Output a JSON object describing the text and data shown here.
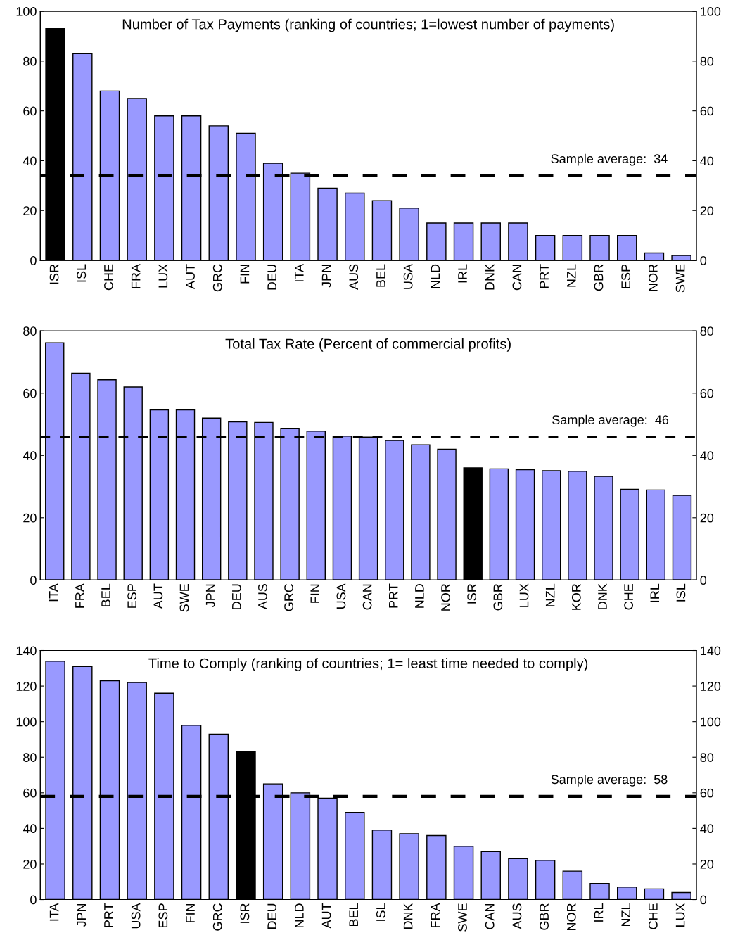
{
  "chart_data": [
    {
      "type": "bar",
      "title": "Number of Tax Payments (ranking of countries; 1=lowest number of payments)",
      "categories": [
        "ISR",
        "ISL",
        "CHE",
        "FRA",
        "LUX",
        "AUT",
        "GRC",
        "FIN",
        "DEU",
        "ITA",
        "JPN",
        "AUS",
        "BEL",
        "USA",
        "NLD",
        "IRL",
        "DNK",
        "CAN",
        "PRT",
        "NZL",
        "GBR",
        "ESP",
        "NOR",
        "SWE"
      ],
      "values": [
        93,
        83,
        68,
        65,
        58,
        58,
        54,
        51,
        39,
        35,
        29,
        27,
        24,
        21,
        15,
        15,
        15,
        15,
        10,
        10,
        10,
        10,
        3,
        2
      ],
      "colors": [
        "#000000",
        "#9999ff",
        "#9999ff",
        "#9999ff",
        "#9999ff",
        "#9999ff",
        "#9999ff",
        "#9999ff",
        "#9999ff",
        "#9999ff",
        "#9999ff",
        "#9999ff",
        "#9999ff",
        "#9999ff",
        "#9999ff",
        "#9999ff",
        "#9999ff",
        "#9999ff",
        "#9999ff",
        "#9999ff",
        "#9999ff",
        "#9999ff",
        "#9999ff",
        "#9999ff"
      ],
      "ylim": [
        0,
        100
      ],
      "yticks": [
        0,
        20,
        40,
        60,
        80,
        100
      ],
      "y2lim": [
        0,
        100
      ],
      "y2ticks": [
        0,
        20,
        40,
        60,
        80,
        100
      ],
      "ref_lines": [
        {
          "axis": "y",
          "value": 34,
          "label": "Sample average:  34",
          "color": "#000000",
          "line_style": "dashed"
        }
      ],
      "grid": false,
      "legend": false
    },
    {
      "type": "bar",
      "title": "Total Tax Rate (Percent of commercial profits)",
      "categories": [
        "ITA",
        "FRA",
        "BEL",
        "ESP",
        "AUT",
        "SWE",
        "JPN",
        "DEU",
        "AUS",
        "GRC",
        "FIN",
        "USA",
        "CAN",
        "PRT",
        "NLD",
        "NOR",
        "ISR",
        "GBR",
        "LUX",
        "NZL",
        "KOR",
        "DNK",
        "CHE",
        "IRL",
        "ISL"
      ],
      "values": [
        76.2,
        66.4,
        64.3,
        62.0,
        54.6,
        54.6,
        52.0,
        50.8,
        50.6,
        48.6,
        47.8,
        46.2,
        45.9,
        44.8,
        43.4,
        42.0,
        36.0,
        35.7,
        35.4,
        35.1,
        34.9,
        33.3,
        29.1,
        28.9,
        27.2
      ],
      "colors": [
        "#9999ff",
        "#9999ff",
        "#9999ff",
        "#9999ff",
        "#9999ff",
        "#9999ff",
        "#9999ff",
        "#9999ff",
        "#9999ff",
        "#9999ff",
        "#9999ff",
        "#9999ff",
        "#9999ff",
        "#9999ff",
        "#9999ff",
        "#9999ff",
        "#000000",
        "#9999ff",
        "#9999ff",
        "#9999ff",
        "#9999ff",
        "#9999ff",
        "#9999ff",
        "#9999ff",
        "#9999ff"
      ],
      "ylim": [
        0,
        80
      ],
      "yticks": [
        0,
        20,
        40,
        60,
        80
      ],
      "y2lim": [
        0,
        80
      ],
      "y2ticks": [
        0,
        20,
        40,
        60,
        80
      ],
      "ref_lines": [
        {
          "axis": "y",
          "value": 46,
          "label": "Sample average:  46",
          "color": "#000000",
          "line_style": "dashed"
        }
      ],
      "grid": false,
      "legend": false
    },
    {
      "type": "bar",
      "title": "Time to Comply (ranking of countries; 1= least time needed to comply)",
      "categories": [
        "ITA",
        "JPN",
        "PRT",
        "USA",
        "ESP",
        "FIN",
        "GRC",
        "ISR",
        "DEU",
        "NLD",
        "AUT",
        "BEL",
        "ISL",
        "DNK",
        "FRA",
        "SWE",
        "CAN",
        "AUS",
        "GBR",
        "NOR",
        "IRL",
        "NZL",
        "CHE",
        "LUX"
      ],
      "values": [
        134,
        131,
        123,
        122,
        116,
        98,
        93,
        83,
        65,
        60,
        57,
        49,
        39,
        37,
        36,
        30,
        27,
        23,
        22,
        16,
        9,
        7,
        6,
        4
      ],
      "colors": [
        "#9999ff",
        "#9999ff",
        "#9999ff",
        "#9999ff",
        "#9999ff",
        "#9999ff",
        "#9999ff",
        "#000000",
        "#9999ff",
        "#9999ff",
        "#9999ff",
        "#9999ff",
        "#9999ff",
        "#9999ff",
        "#9999ff",
        "#9999ff",
        "#9999ff",
        "#9999ff",
        "#9999ff",
        "#9999ff",
        "#9999ff",
        "#9999ff",
        "#9999ff",
        "#9999ff"
      ],
      "ylim": [
        0,
        140
      ],
      "yticks": [
        0,
        20,
        40,
        60,
        80,
        100,
        120,
        140
      ],
      "y2lim": [
        0,
        140
      ],
      "y2ticks": [
        0,
        20,
        40,
        60,
        80,
        100,
        120,
        140
      ],
      "ref_lines": [
        {
          "axis": "y",
          "value": 58,
          "label": "Sample average:  58",
          "color": "#000000",
          "line_style": "dashed"
        }
      ],
      "grid": false,
      "legend": false
    }
  ]
}
